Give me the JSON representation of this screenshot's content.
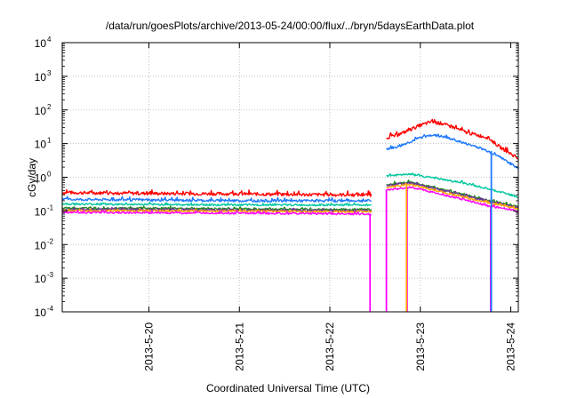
{
  "chart_data": {
    "type": "line",
    "title": "/data/run/goesPlots/archive/2013-05-24/00:00/flux/../bryn/5daysEarthData.plot",
    "xlabel": "Coordinated Universal Time (UTC)",
    "ylabel": "cGy/day",
    "y_scale": "log",
    "ylim": [
      0.0001,
      10000
    ],
    "xlim": [
      "2013-05-19 01:00",
      "2013-05-24 02:00"
    ],
    "grid": true,
    "legend": "none",
    "x_ticks": [
      "2013-5-20",
      "2013-5-21",
      "2013-5-22",
      "2013-5-23",
      "2013-5-24"
    ],
    "y_ticks": [
      {
        "value": 0.0001,
        "base": "10",
        "exp": "-4"
      },
      {
        "value": 0.001,
        "base": "10",
        "exp": "-3"
      },
      {
        "value": 0.01,
        "base": "10",
        "exp": "-2"
      },
      {
        "value": 0.1,
        "base": "10",
        "exp": "-1"
      },
      {
        "value": 1,
        "base": "10",
        "exp": "0"
      },
      {
        "value": 10,
        "base": "10",
        "exp": "1"
      },
      {
        "value": 100,
        "base": "10",
        "exp": "2"
      },
      {
        "value": 1000,
        "base": "10",
        "exp": "3"
      },
      {
        "value": 10000,
        "base": "10",
        "exp": "4"
      }
    ],
    "data_gap": [
      "2013-05-22 11:00",
      "2013-05-22 15:00"
    ],
    "series": [
      {
        "color": "#ff0000",
        "points": [
          [
            "2013-05-19 01:00",
            0.35
          ],
          [
            "2013-05-20 00:00",
            0.33
          ],
          [
            "2013-05-21 00:00",
            0.32
          ],
          [
            "2013-05-22 00:00",
            0.3
          ],
          [
            "2013-05-22 11:00",
            0.3
          ],
          [
            "2013-05-22 15:00",
            15
          ],
          [
            "2013-05-22 18:00",
            18
          ],
          [
            "2013-05-22 21:00",
            25
          ],
          [
            "2013-05-23 00:00",
            35
          ],
          [
            "2013-05-23 03:00",
            45
          ],
          [
            "2013-05-23 06:00",
            38
          ],
          [
            "2013-05-23 09:00",
            30
          ],
          [
            "2013-05-23 12:00",
            22
          ],
          [
            "2013-05-23 15:00",
            18
          ],
          [
            "2013-05-23 18:00",
            15
          ],
          [
            "2013-05-23 21:00",
            8
          ],
          [
            "2013-05-24 00:00",
            5
          ],
          [
            "2013-05-24 02:00",
            3.5
          ]
        ]
      },
      {
        "color": "#1e78ff",
        "points": [
          [
            "2013-05-19 01:00",
            0.22
          ],
          [
            "2013-05-20 00:00",
            0.21
          ],
          [
            "2013-05-21 00:00",
            0.2
          ],
          [
            "2013-05-22 00:00",
            0.2
          ],
          [
            "2013-05-22 11:00",
            0.2
          ],
          [
            "2013-05-22 15:00",
            7
          ],
          [
            "2013-05-22 18:00",
            8
          ],
          [
            "2013-05-22 21:00",
            11
          ],
          [
            "2013-05-23 00:00",
            15
          ],
          [
            "2013-05-23 03:00",
            18
          ],
          [
            "2013-05-23 06:00",
            16
          ],
          [
            "2013-05-23 09:00",
            13
          ],
          [
            "2013-05-23 12:00",
            10
          ],
          [
            "2013-05-23 15:00",
            8
          ],
          [
            "2013-05-23 18:00",
            6
          ],
          [
            "2013-05-23 21:00",
            4
          ],
          [
            "2013-05-24 00:00",
            2.5
          ],
          [
            "2013-05-24 02:00",
            1.8
          ]
        ]
      },
      {
        "color": "#00c8a0",
        "points": [
          [
            "2013-05-19 01:00",
            0.16
          ],
          [
            "2013-05-20 00:00",
            0.155
          ],
          [
            "2013-05-21 00:00",
            0.15
          ],
          [
            "2013-05-22 00:00",
            0.15
          ],
          [
            "2013-05-22 11:00",
            0.15
          ],
          [
            "2013-05-22 15:00",
            1.1
          ],
          [
            "2013-05-22 21:00",
            1.25
          ],
          [
            "2013-05-23 00:00",
            1.1
          ],
          [
            "2013-05-23 06:00",
            0.85
          ],
          [
            "2013-05-23 12:00",
            0.65
          ],
          [
            "2013-05-23 18:00",
            0.45
          ],
          [
            "2013-05-24 00:00",
            0.3
          ],
          [
            "2013-05-24 02:00",
            0.25
          ]
        ]
      },
      {
        "color": "#228b22",
        "points": [
          [
            "2013-05-19 01:00",
            0.12
          ],
          [
            "2013-05-20 00:00",
            0.12
          ],
          [
            "2013-05-21 00:00",
            0.115
          ],
          [
            "2013-05-22 00:00",
            0.11
          ],
          [
            "2013-05-22 11:00",
            0.11
          ],
          [
            "2013-05-22 15:00",
            0.6
          ],
          [
            "2013-05-22 21:00",
            0.72
          ],
          [
            "2013-05-23 00:00",
            0.6
          ],
          [
            "2013-05-23 06:00",
            0.42
          ],
          [
            "2013-05-23 12:00",
            0.3
          ],
          [
            "2013-05-23 18:00",
            0.2
          ],
          [
            "2013-05-24 00:00",
            0.15
          ],
          [
            "2013-05-24 02:00",
            0.13
          ]
        ]
      },
      {
        "color": "#7030a0",
        "points": [
          [
            "2013-05-19 01:00",
            0.11
          ],
          [
            "2013-05-20 00:00",
            0.11
          ],
          [
            "2013-05-21 00:00",
            0.105
          ],
          [
            "2013-05-22 00:00",
            0.1
          ],
          [
            "2013-05-22 11:00",
            0.1
          ],
          [
            "2013-05-22 15:00",
            0.58
          ],
          [
            "2013-05-22 21:00",
            0.68
          ],
          [
            "2013-05-23 00:00",
            0.58
          ],
          [
            "2013-05-23 06:00",
            0.4
          ],
          [
            "2013-05-23 12:00",
            0.28
          ],
          [
            "2013-05-23 18:00",
            0.19
          ],
          [
            "2013-05-24 00:00",
            0.14
          ],
          [
            "2013-05-24 02:00",
            0.12
          ]
        ]
      },
      {
        "color": "#ffa500",
        "points": [
          [
            "2013-05-19 01:00",
            0.1
          ],
          [
            "2013-05-20 00:00",
            0.1
          ],
          [
            "2013-05-21 00:00",
            0.098
          ],
          [
            "2013-05-22 00:00",
            0.095
          ],
          [
            "2013-05-22 11:00",
            0.095
          ],
          [
            "2013-05-22 15:00",
            0.5
          ],
          [
            "2013-05-22 21:00",
            0.6
          ],
          [
            "2013-05-23 00:00",
            0.52
          ],
          [
            "2013-05-23 06:00",
            0.36
          ],
          [
            "2013-05-23 12:00",
            0.25
          ],
          [
            "2013-05-23 18:00",
            0.17
          ],
          [
            "2013-05-24 00:00",
            0.13
          ],
          [
            "2013-05-24 02:00",
            0.11
          ]
        ]
      },
      {
        "color": "#ff00ff",
        "points": [
          [
            "2013-05-19 01:00",
            0.09
          ],
          [
            "2013-05-20 00:00",
            0.088
          ],
          [
            "2013-05-21 00:00",
            0.085
          ],
          [
            "2013-05-22 00:00",
            0.082
          ],
          [
            "2013-05-22 11:00",
            0.08
          ],
          [
            "2013-05-22 15:00",
            0.42
          ],
          [
            "2013-05-22 21:00",
            0.5
          ],
          [
            "2013-05-23 00:00",
            0.44
          ],
          [
            "2013-05-23 06:00",
            0.3
          ],
          [
            "2013-05-23 12:00",
            0.21
          ],
          [
            "2013-05-23 18:00",
            0.14
          ],
          [
            "2013-05-24 00:00",
            0.11
          ],
          [
            "2013-05-24 02:00",
            0.09
          ]
        ]
      }
    ]
  }
}
